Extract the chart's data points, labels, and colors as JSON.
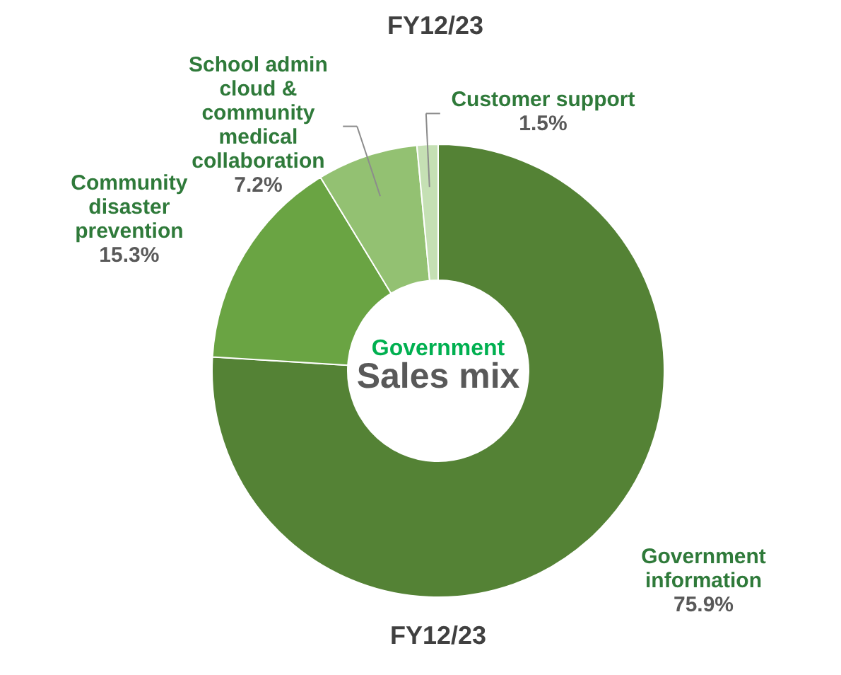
{
  "chart_data": {
    "type": "donut",
    "title": "FY12/23",
    "categories": [
      "Government information",
      "Community disaster prevention",
      "School admin cloud & community medical collaboration",
      "Customer support"
    ],
    "values": [
      75.9,
      15.3,
      7.2,
      1.5
    ],
    "value_labels": [
      "75.9%",
      "15.3%",
      "7.2%",
      "1.5%"
    ],
    "colors": [
      "#548235",
      "#6aa443",
      "#93c172",
      "#c5e0b4"
    ],
    "annotations": [
      "FY12/23",
      "Government",
      "Sales mix"
    ]
  }
}
